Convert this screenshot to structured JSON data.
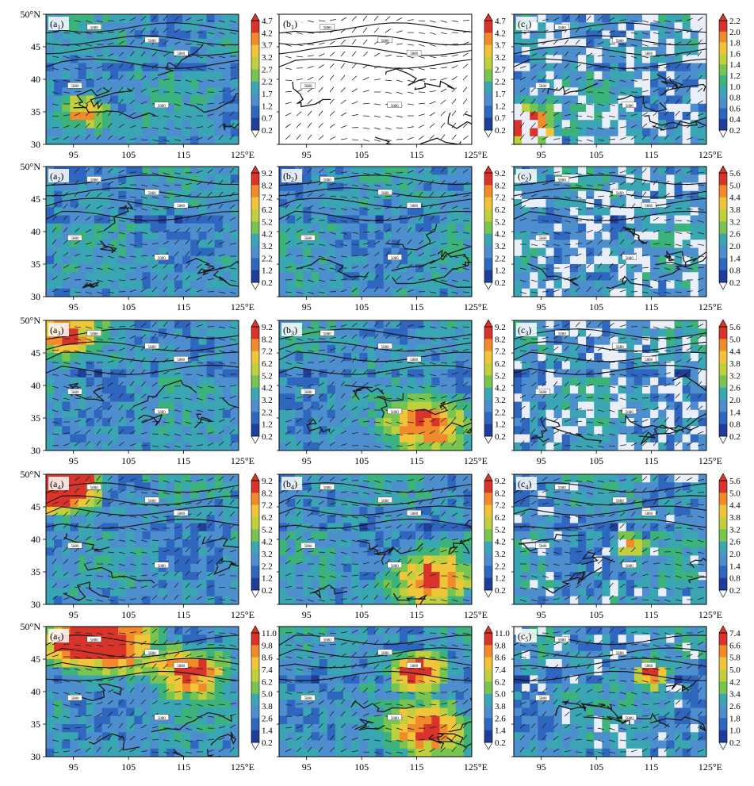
{
  "figure": {
    "colors": {
      "palette": [
        "#1f3e9a",
        "#2f66bf",
        "#4d8ecf",
        "#3aa6b4",
        "#3cb37a",
        "#78c450",
        "#c0cf3d",
        "#f0c53a",
        "#f08a2b",
        "#d9342b"
      ],
      "background_white": "#ffffff",
      "map_lines": "#1a1a1a"
    },
    "x_axis": {
      "ticks": [
        95,
        105,
        115
      ],
      "end_label": "125°E"
    },
    "y_axis": {
      "ticks": [
        45,
        40,
        35,
        30
      ],
      "top_label": "50°N"
    },
    "contour_label": "5880",
    "panels": [
      {
        "id": "a1",
        "label": "a",
        "sub": "1",
        "row": 0,
        "col": 0,
        "colorbar_ticks": [
          "4.7",
          "4.2",
          "3.7",
          "3.2",
          "2.7",
          "2.2",
          "1.7",
          "1.2",
          "0.7",
          "0.2"
        ]
      },
      {
        "id": "b1",
        "label": "b",
        "sub": "1",
        "row": 0,
        "col": 1,
        "blank": true,
        "colorbar_ticks": [
          "4.7",
          "4.2",
          "3.7",
          "3.2",
          "2.7",
          "2.2",
          "1.7",
          "1.2",
          "0.7",
          "0.2"
        ]
      },
      {
        "id": "c1",
        "label": "c",
        "sub": "1",
        "row": 0,
        "col": 2,
        "colorbar_ticks": [
          "2.2",
          "2.0",
          "1.8",
          "1.6",
          "1.4",
          "1.2",
          "1.0",
          "0.8",
          "0.6",
          "0.4",
          "0.2"
        ]
      },
      {
        "id": "a2",
        "label": "a",
        "sub": "2",
        "row": 1,
        "col": 0,
        "colorbar_ticks": [
          "9.2",
          "8.2",
          "7.2",
          "6.2",
          "5.2",
          "4.2",
          "3.2",
          "2.2",
          "1.2",
          "0.2"
        ]
      },
      {
        "id": "b2",
        "label": "b",
        "sub": "2",
        "row": 1,
        "col": 1,
        "colorbar_ticks": [
          "9.2",
          "8.2",
          "7.2",
          "6.2",
          "5.2",
          "4.2",
          "3.2",
          "2.2",
          "1.2",
          "0.2"
        ]
      },
      {
        "id": "c2",
        "label": "c",
        "sub": "2",
        "row": 1,
        "col": 2,
        "colorbar_ticks": [
          "5.6",
          "5.0",
          "4.4",
          "3.8",
          "3.2",
          "2.6",
          "2.0",
          "1.4",
          "0.8",
          "0.2"
        ]
      },
      {
        "id": "a3",
        "label": "a",
        "sub": "3",
        "row": 2,
        "col": 0,
        "colorbar_ticks": [
          "9.2",
          "8.2",
          "7.2",
          "6.2",
          "5.2",
          "4.2",
          "3.2",
          "2.2",
          "1.2",
          "0.2"
        ]
      },
      {
        "id": "b3",
        "label": "b",
        "sub": "3",
        "row": 2,
        "col": 1,
        "colorbar_ticks": [
          "9.2",
          "8.2",
          "7.2",
          "6.2",
          "5.2",
          "4.2",
          "3.2",
          "2.2",
          "1.2",
          "0.2"
        ]
      },
      {
        "id": "c3",
        "label": "c",
        "sub": "3",
        "row": 2,
        "col": 2,
        "colorbar_ticks": [
          "5.6",
          "5.0",
          "4.4",
          "3.8",
          "3.2",
          "2.6",
          "2.0",
          "1.4",
          "0.8",
          "0.2"
        ]
      },
      {
        "id": "a4",
        "label": "a",
        "sub": "4",
        "row": 3,
        "col": 0,
        "colorbar_ticks": [
          "9.2",
          "8.2",
          "7.2",
          "6.2",
          "5.2",
          "4.2",
          "3.2",
          "2.2",
          "1.2",
          "0.2"
        ]
      },
      {
        "id": "b4",
        "label": "b",
        "sub": "4",
        "row": 3,
        "col": 1,
        "colorbar_ticks": [
          "9.2",
          "8.2",
          "7.2",
          "6.2",
          "5.2",
          "4.2",
          "3.2",
          "2.2",
          "1.2",
          "0.2"
        ]
      },
      {
        "id": "c4",
        "label": "c",
        "sub": "4",
        "row": 3,
        "col": 2,
        "colorbar_ticks": [
          "5.6",
          "5.0",
          "4.4",
          "3.8",
          "3.2",
          "2.6",
          "2.0",
          "1.4",
          "0.8",
          "0.2"
        ]
      },
      {
        "id": "a5",
        "label": "a",
        "sub": "5",
        "row": 4,
        "col": 0,
        "colorbar_ticks": [
          "11.0",
          "9.8",
          "8.6",
          "7.4",
          "6.2",
          "5.0",
          "3.8",
          "2.6",
          "1.4",
          "0.2"
        ]
      },
      {
        "id": "b5",
        "label": "b",
        "sub": "5",
        "row": 4,
        "col": 1,
        "hide_label": true,
        "colorbar_ticks": [
          "11.0",
          "9.8",
          "8.6",
          "7.4",
          "6.2",
          "5.0",
          "3.8",
          "2.6",
          "1.4",
          "0.2"
        ]
      },
      {
        "id": "c5",
        "label": "c",
        "sub": "5",
        "row": 4,
        "col": 2,
        "colorbar_ticks": [
          "7.4",
          "6.6",
          "5.8",
          "5.0",
          "4.2",
          "3.4",
          "2.6",
          "1.8",
          "1.0",
          "0.2"
        ]
      }
    ]
  },
  "chart_data": {
    "type": "heatmap",
    "x_range": [
      90,
      125
    ],
    "y_range": [
      30,
      50
    ],
    "x_ticks": [
      95,
      105,
      115
    ],
    "y_ticks": [
      30,
      35,
      40,
      45
    ],
    "x_end_label": "125°E",
    "y_top_label": "50°N",
    "panels": [
      "a1",
      "b1",
      "c1",
      "a2",
      "b2",
      "c2",
      "a3",
      "b3",
      "c3",
      "a4",
      "b4",
      "c4",
      "a5",
      "b5",
      "c5"
    ]
  }
}
